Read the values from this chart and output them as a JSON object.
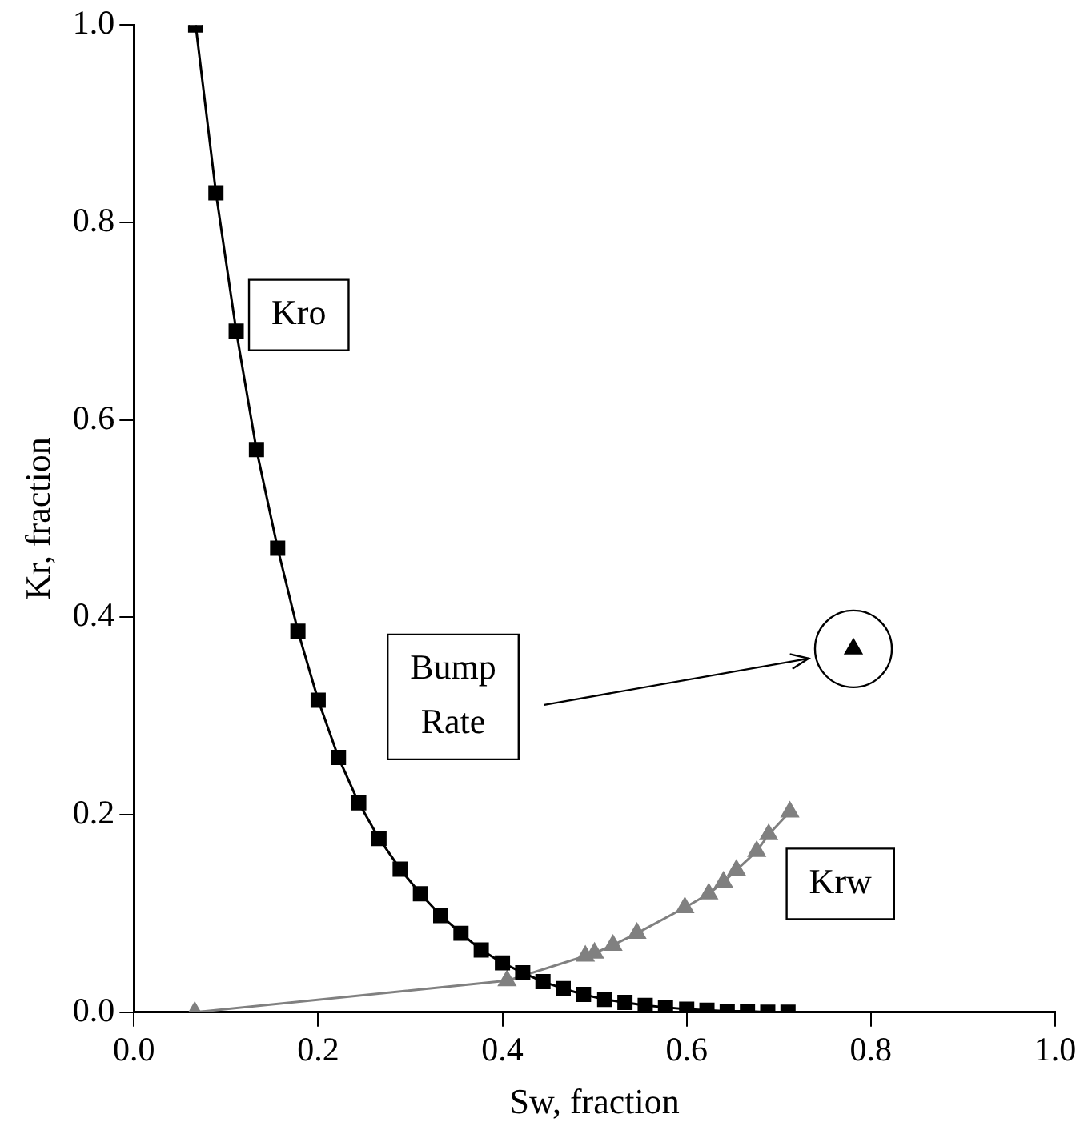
{
  "chart_data": {
    "type": "line",
    "xlabel": "Sw, fraction",
    "ylabel": "Kr, fraction",
    "xlim": [
      0,
      1
    ],
    "ylim": [
      0,
      1
    ],
    "xticks": [
      {
        "value": 0,
        "label": "0.0"
      },
      {
        "value": 0.2,
        "label": "0.2"
      },
      {
        "value": 0.4,
        "label": "0.4"
      },
      {
        "value": 0.6,
        "label": "0.6"
      },
      {
        "value": 0.8,
        "label": "0.8"
      },
      {
        "value": 1,
        "label": "1.0"
      }
    ],
    "yticks": [
      {
        "value": 0,
        "label": "0.0"
      },
      {
        "value": 0.2,
        "label": "0.2"
      },
      {
        "value": 0.4,
        "label": "0.4"
      },
      {
        "value": 0.6,
        "label": "0.6"
      },
      {
        "value": 0.8,
        "label": "0.8"
      },
      {
        "value": 1,
        "label": "1.0"
      }
    ],
    "grid": false,
    "legend": false,
    "series": [
      {
        "name": "Kro",
        "marker": "square",
        "color": "#000000",
        "x": [
          0.067,
          0.089,
          0.111,
          0.133,
          0.156,
          0.178,
          0.2,
          0.222,
          0.244,
          0.266,
          0.289,
          0.311,
          0.333,
          0.355,
          0.377,
          0.4,
          0.422,
          0.444,
          0.466,
          0.488,
          0.511,
          0.533,
          0.555,
          0.577,
          0.6,
          0.622,
          0.644,
          0.666,
          0.688,
          0.71
        ],
        "values": [
          1.0,
          0.83,
          0.69,
          0.57,
          0.47,
          0.386,
          0.316,
          0.258,
          0.212,
          0.176,
          0.145,
          0.12,
          0.098,
          0.08,
          0.063,
          0.05,
          0.04,
          0.031,
          0.024,
          0.018,
          0.013,
          0.01,
          0.007,
          0.005,
          0.003,
          0.002,
          0.001,
          0.001,
          0,
          0
        ]
      },
      {
        "name": "Krw",
        "marker": "triangle",
        "color": "#808080",
        "x": [
          0.066,
          0.405,
          0.49,
          0.5,
          0.52,
          0.546,
          0.598,
          0.624,
          0.64,
          0.654,
          0.676,
          0.689,
          0.712
        ],
        "values": [
          0,
          0.032,
          0.057,
          0.06,
          0.068,
          0.08,
          0.106,
          0.12,
          0.132,
          0.144,
          0.163,
          0.18,
          0.203
        ]
      },
      {
        "marker": "triangle",
        "color": "#000000",
        "x": [
          0.781
        ],
        "values": [
          0.368
        ]
      }
    ],
    "annotations": [
      "Bump Rate"
    ]
  }
}
